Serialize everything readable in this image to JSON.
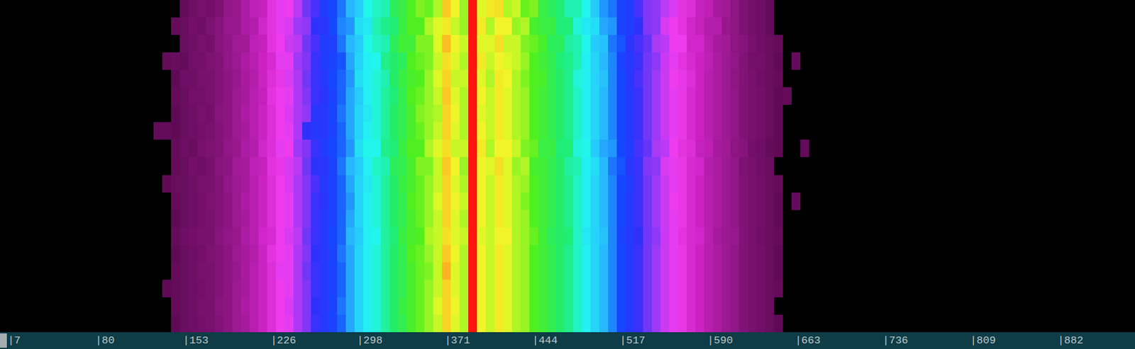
{
  "chart_data": {
    "type": "heatmap",
    "xlim": [
      -1.3,
      944.5
    ],
    "xticks": [
      {
        "value": 7,
        "label": "|7"
      },
      {
        "value": 80,
        "label": "|80"
      },
      {
        "value": 153,
        "label": "|153"
      },
      {
        "value": 226,
        "label": "|226"
      },
      {
        "value": 298,
        "label": "|298"
      },
      {
        "value": 371,
        "label": "|371"
      },
      {
        "value": 444,
        "label": "|444"
      },
      {
        "value": 517,
        "label": "|517"
      },
      {
        "value": 590,
        "label": "|590"
      },
      {
        "value": 663,
        "label": "|663"
      },
      {
        "value": 736,
        "label": "|736"
      },
      {
        "value": 809,
        "label": "|809"
      },
      {
        "value": 882,
        "label": "|882"
      }
    ],
    "tick_labels": "x",
    "zlim": [
      0,
      100
    ],
    "x_bins": [
      126.9,
      134.2,
      141.5,
      148.7,
      156.0,
      163.3,
      170.6,
      177.9,
      185.1,
      192.4,
      199.7,
      207.0,
      214.3,
      221.5,
      228.8,
      236.1,
      243.4,
      250.7,
      257.9,
      265.2,
      272.5,
      279.8,
      287.1,
      294.3,
      301.6,
      308.9,
      316.2,
      323.5,
      330.7,
      338.0,
      345.3,
      352.6,
      359.9,
      367.1,
      374.4,
      381.7,
      389.0,
      396.3,
      403.5,
      410.8,
      418.1,
      425.4,
      432.7,
      439.9,
      447.2,
      454.5,
      461.8,
      469.1,
      476.3,
      483.6,
      490.9,
      498.2,
      505.5,
      512.7,
      520.0,
      527.3,
      534.6,
      541.9,
      549.1,
      556.4,
      563.7,
      571.0,
      578.3,
      585.5,
      592.8,
      600.1,
      607.4,
      614.7,
      621.9,
      629.2,
      636.5,
      643.8,
      651.1,
      658.3,
      665.6,
      672.9
    ],
    "cells": [
      [
        null,
        null,
        null,
        8,
        10,
        12,
        11,
        13,
        17,
        18,
        22,
        25,
        26,
        31,
        34,
        33,
        37,
        42,
        45,
        50,
        53,
        56,
        60,
        62,
        67,
        69,
        70,
        75,
        77,
        80,
        82,
        81,
        84,
        91,
        87,
        83,
        100,
        86,
        88,
        89,
        84,
        85,
        81,
        82,
        77,
        75,
        73,
        70,
        70,
        67,
        62,
        58,
        56,
        52,
        50,
        45,
        41,
        40,
        37,
        35,
        31,
        30,
        26,
        25,
        21,
        20,
        16,
        13,
        11,
        10,
        8,
        null,
        null,
        null,
        null
      ],
      [
        null,
        null,
        8,
        9,
        11,
        10,
        13,
        15,
        18,
        18,
        22,
        23,
        28,
        31,
        34,
        35,
        39,
        40,
        47,
        48,
        53,
        57,
        58,
        64,
        65,
        70,
        72,
        73,
        77,
        80,
        80,
        84,
        86,
        88,
        85,
        83,
        100,
        88,
        84,
        87,
        87,
        83,
        84,
        79,
        77,
        77,
        73,
        73,
        68,
        65,
        64,
        59,
        58,
        52,
        50,
        47,
        41,
        40,
        35,
        33,
        31,
        28,
        26,
        23,
        23,
        18,
        16,
        13,
        11,
        10,
        8,
        null,
        null,
        null,
        null
      ],
      [
        null,
        null,
        null,
        9,
        10,
        12,
        11,
        15,
        17,
        20,
        20,
        25,
        26,
        31,
        33,
        36,
        37,
        42,
        45,
        50,
        51,
        56,
        60,
        62,
        67,
        69,
        70,
        75,
        78,
        78,
        82,
        82,
        86,
        92,
        87,
        85,
        100,
        86,
        86,
        89,
        85,
        85,
        82,
        81,
        79,
        75,
        75,
        71,
        70,
        67,
        62,
        61,
        56,
        54,
        48,
        45,
        43,
        38,
        37,
        33,
        33,
        28,
        28,
        24,
        21,
        20,
        16,
        15,
        12,
        10,
        9,
        8,
        null,
        null,
        null
      ],
      [
        null,
        8,
        9,
        8,
        11,
        11,
        13,
        14,
        17,
        19,
        22,
        24,
        27,
        29,
        34,
        34,
        39,
        41,
        46,
        50,
        52,
        54,
        59,
        63,
        66,
        67,
        72,
        74,
        75,
        80,
        81,
        82,
        85,
        89,
        86,
        84,
        100,
        88,
        85,
        87,
        86,
        85,
        83,
        80,
        78,
        76,
        73,
        72,
        70,
        66,
        63,
        60,
        57,
        52,
        49,
        46,
        42,
        40,
        36,
        34,
        31,
        29,
        27,
        25,
        22,
        19,
        17,
        14,
        11,
        11,
        9,
        7,
        null,
        8,
        null
      ],
      [
        null,
        null,
        7,
        10,
        10,
        12,
        12,
        14,
        16,
        18,
        21,
        23,
        27,
        30,
        32,
        35,
        38,
        42,
        46,
        49,
        53,
        55,
        58,
        64,
        66,
        68,
        70,
        74,
        77,
        79,
        80,
        83,
        86,
        90,
        85,
        85,
        100,
        86,
        84,
        88,
        87,
        84,
        82,
        80,
        79,
        76,
        74,
        72,
        68,
        66,
        63,
        61,
        57,
        53,
        49,
        45,
        42,
        39,
        36,
        33,
        32,
        30,
        27,
        24,
        22,
        19,
        16,
        14,
        12,
        10,
        9,
        8,
        null,
        null,
        null
      ],
      [
        null,
        null,
        8,
        9,
        11,
        11,
        12,
        14,
        16,
        19,
        21,
        24,
        26,
        31,
        33,
        34,
        38,
        41,
        46,
        48,
        52,
        55,
        59,
        62,
        66,
        68,
        71,
        73,
        76,
        80,
        81,
        83,
        85,
        91,
        86,
        84,
        100,
        87,
        85,
        88,
        86,
        84,
        83,
        80,
        78,
        76,
        74,
        72,
        69,
        66,
        63,
        60,
        57,
        53,
        49,
        46,
        42,
        39,
        36,
        34,
        32,
        29,
        27,
        24,
        22,
        19,
        17,
        14,
        12,
        11,
        9,
        7,
        8,
        null,
        null
      ],
      [
        null,
        null,
        7,
        9,
        10,
        12,
        11,
        15,
        16,
        19,
        22,
        24,
        27,
        30,
        33,
        35,
        38,
        40,
        48,
        49,
        52,
        56,
        59,
        63,
        65,
        68,
        71,
        74,
        76,
        79,
        82,
        83,
        84,
        90,
        87,
        84,
        100,
        86,
        85,
        88,
        86,
        84,
        83,
        80,
        78,
        76,
        74,
        72,
        69,
        66,
        63,
        60,
        57,
        53,
        49,
        46,
        42,
        39,
        36,
        34,
        32,
        29,
        27,
        24,
        22,
        19,
        17,
        14,
        12,
        11,
        9,
        7,
        null,
        null,
        null
      ],
      [
        8,
        8,
        7,
        9,
        10,
        11,
        12,
        14,
        16,
        19,
        21,
        24,
        27,
        30,
        33,
        34,
        38,
        47,
        49,
        49,
        52,
        55,
        59,
        63,
        66,
        68,
        71,
        74,
        76,
        79,
        81,
        83,
        85,
        90,
        86,
        84,
        100,
        87,
        85,
        88,
        86,
        84,
        83,
        80,
        78,
        76,
        74,
        72,
        69,
        66,
        63,
        60,
        57,
        53,
        49,
        46,
        42,
        39,
        36,
        34,
        32,
        29,
        27,
        24,
        22,
        19,
        17,
        14,
        12,
        11,
        9,
        7,
        null,
        null,
        null
      ],
      [
        null,
        null,
        8,
        10,
        9,
        12,
        13,
        14,
        17,
        18,
        22,
        23,
        28,
        30,
        34,
        33,
        39,
        41,
        46,
        50,
        53,
        55,
        58,
        64,
        67,
        67,
        72,
        73,
        77,
        80,
        80,
        84,
        86,
        89,
        85,
        85,
        100,
        88,
        84,
        87,
        87,
        85,
        82,
        81,
        77,
        77,
        73,
        73,
        68,
        67,
        62,
        59,
        58,
        53,
        50,
        45,
        43,
        38,
        37,
        33,
        31,
        30,
        26,
        25,
        21,
        20,
        16,
        15,
        11,
        10,
        8,
        7,
        null,
        null,
        8
      ],
      [
        null,
        null,
        8,
        9,
        11,
        10,
        12,
        15,
        16,
        20,
        21,
        25,
        26,
        31,
        32,
        35,
        37,
        42,
        47,
        48,
        52,
        56,
        60,
        62,
        66,
        69,
        70,
        75,
        76,
        79,
        82,
        82,
        85,
        91,
        87,
        83,
        100,
        87,
        86,
        89,
        86,
        83,
        84,
        79,
        78,
        76,
        74,
        71,
        70,
        66,
        64,
        60,
        56,
        54,
        49,
        46,
        41,
        40,
        35,
        34,
        32,
        29,
        28,
        23,
        22,
        19,
        17,
        13,
        12,
        10,
        9,
        null,
        null,
        null,
        null
      ],
      [
        null,
        7,
        9,
        9,
        10,
        12,
        12,
        14,
        17,
        19,
        21,
        24,
        27,
        30,
        33,
        35,
        38,
        41,
        45,
        49,
        52,
        55,
        59,
        63,
        65,
        68,
        71,
        74,
        77,
        79,
        81,
        83,
        85,
        90,
        86,
        84,
        100,
        87,
        85,
        88,
        86,
        84,
        83,
        80,
        78,
        76,
        74,
        72,
        69,
        66,
        63,
        60,
        57,
        53,
        50,
        46,
        42,
        39,
        36,
        34,
        32,
        29,
        27,
        24,
        22,
        19,
        17,
        14,
        12,
        11,
        9,
        8,
        null,
        null,
        null
      ],
      [
        null,
        null,
        8,
        9,
        10,
        11,
        13,
        14,
        16,
        19,
        22,
        24,
        27,
        30,
        33,
        34,
        38,
        41,
        46,
        48,
        52,
        55,
        58,
        63,
        66,
        68,
        71,
        74,
        76,
        80,
        81,
        83,
        86,
        90,
        87,
        85,
        100,
        87,
        85,
        88,
        86,
        84,
        82,
        80,
        78,
        76,
        74,
        72,
        69,
        66,
        63,
        60,
        57,
        53,
        49,
        46,
        42,
        39,
        36,
        33,
        32,
        29,
        27,
        24,
        22,
        19,
        17,
        14,
        12,
        11,
        9,
        7,
        null,
        8,
        null
      ],
      [
        null,
        null,
        7,
        9,
        10,
        11,
        12,
        14,
        16,
        19,
        21,
        24,
        27,
        30,
        33,
        34,
        38,
        41,
        46,
        49,
        52,
        55,
        59,
        63,
        66,
        68,
        71,
        74,
        76,
        79,
        81,
        83,
        85,
        90,
        86,
        84,
        100,
        87,
        85,
        88,
        86,
        84,
        83,
        80,
        78,
        76,
        74,
        72,
        69,
        66,
        63,
        60,
        57,
        53,
        49,
        46,
        42,
        39,
        36,
        34,
        32,
        29,
        27,
        24,
        22,
        19,
        17,
        14,
        12,
        11,
        9,
        7,
        null,
        null,
        null
      ],
      [
        null,
        null,
        8,
        10,
        11,
        12,
        12,
        15,
        17,
        18,
        22,
        24,
        28,
        29,
        33,
        35,
        37,
        42,
        46,
        49,
        53,
        55,
        60,
        62,
        66,
        67,
        71,
        73,
        77,
        79,
        80,
        84,
        85,
        89,
        86,
        85,
        100,
        86,
        85,
        87,
        87,
        84,
        83,
        81,
        78,
        75,
        74,
        73,
        69,
        65,
        63,
        61,
        57,
        52,
        49,
        47,
        42,
        40,
        36,
        34,
        31,
        29,
        28,
        24,
        21,
        19,
        18,
        14,
        12,
        10,
        9,
        8,
        null,
        null,
        null
      ],
      [
        null,
        null,
        7,
        9,
        10,
        11,
        13,
        14,
        16,
        19,
        21,
        23,
        27,
        31,
        33,
        34,
        38,
        41,
        47,
        49,
        52,
        56,
        59,
        63,
        66,
        68,
        71,
        74,
        76,
        80,
        81,
        83,
        85,
        91,
        87,
        84,
        100,
        87,
        85,
        88,
        86,
        84,
        83,
        80,
        78,
        76,
        74,
        72,
        69,
        66,
        63,
        60,
        57,
        53,
        49,
        46,
        42,
        39,
        36,
        34,
        32,
        29,
        27,
        24,
        22,
        19,
        17,
        14,
        12,
        11,
        9,
        7,
        null,
        null,
        null
      ],
      [
        null,
        null,
        8,
        9,
        10,
        12,
        12,
        14,
        16,
        18,
        21,
        24,
        27,
        30,
        34,
        34,
        38,
        42,
        46,
        49,
        52,
        55,
        59,
        63,
        66,
        68,
        71,
        74,
        76,
        79,
        81,
        82,
        85,
        93,
        86,
        84,
        100,
        87,
        85,
        88,
        86,
        84,
        83,
        80,
        78,
        76,
        74,
        72,
        69,
        66,
        63,
        60,
        57,
        53,
        49,
        46,
        42,
        39,
        36,
        34,
        32,
        29,
        27,
        24,
        22,
        19,
        17,
        14,
        12,
        11,
        9,
        7,
        null,
        null,
        null
      ],
      [
        null,
        7,
        8,
        9,
        10,
        11,
        12,
        14,
        16,
        19,
        21,
        24,
        27,
        30,
        33,
        34,
        38,
        41,
        46,
        49,
        52,
        55,
        59,
        63,
        66,
        68,
        71,
        74,
        76,
        79,
        81,
        83,
        85,
        90,
        86,
        84,
        100,
        87,
        85,
        88,
        86,
        84,
        83,
        80,
        78,
        76,
        74,
        72,
        69,
        66,
        63,
        60,
        57,
        53,
        49,
        46,
        42,
        39,
        36,
        34,
        32,
        29,
        27,
        24,
        22,
        19,
        17,
        14,
        12,
        11,
        9,
        8,
        null,
        null,
        null
      ],
      [
        null,
        null,
        8,
        9,
        10,
        12,
        12,
        15,
        16,
        19,
        22,
        24,
        27,
        30,
        33,
        35,
        38,
        41,
        47,
        49,
        52,
        56,
        59,
        63,
        66,
        68,
        71,
        74,
        77,
        79,
        81,
        83,
        86,
        90,
        87,
        84,
        100,
        87,
        85,
        88,
        86,
        84,
        83,
        80,
        78,
        76,
        74,
        72,
        69,
        66,
        63,
        60,
        57,
        53,
        49,
        46,
        42,
        39,
        36,
        34,
        32,
        29,
        27,
        24,
        22,
        19,
        17,
        14,
        12,
        11,
        9,
        null,
        null,
        null,
        null
      ],
      [
        null,
        null,
        7,
        9,
        10,
        11,
        12,
        14,
        16,
        19,
        21,
        24,
        27,
        30,
        33,
        34,
        38,
        41,
        46,
        49,
        52,
        55,
        59,
        63,
        66,
        68,
        71,
        74,
        76,
        79,
        81,
        83,
        85,
        90,
        86,
        84,
        100,
        87,
        85,
        88,
        86,
        84,
        83,
        80,
        78,
        76,
        74,
        72,
        69,
        66,
        63,
        60,
        57,
        53,
        49,
        46,
        42,
        39,
        36,
        34,
        32,
        29,
        27,
        24,
        22,
        19,
        17,
        14,
        12,
        11,
        9,
        7,
        null,
        null,
        null
      ]
    ]
  }
}
